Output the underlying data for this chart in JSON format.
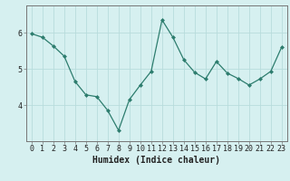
{
  "x": [
    0,
    1,
    2,
    3,
    4,
    5,
    6,
    7,
    8,
    9,
    10,
    11,
    12,
    13,
    14,
    15,
    16,
    17,
    18,
    19,
    20,
    21,
    22,
    23
  ],
  "y": [
    5.97,
    5.87,
    5.63,
    5.35,
    4.65,
    4.28,
    4.23,
    3.85,
    3.3,
    4.15,
    4.55,
    4.93,
    6.35,
    5.87,
    5.25,
    4.9,
    4.72,
    5.2,
    4.88,
    4.73,
    4.55,
    4.72,
    4.93,
    5.6
  ],
  "line_color": "#2d7d6e",
  "marker": "D",
  "marker_size": 2.0,
  "bg_color": "#d6f0f0",
  "grid_color": "#b8dcdc",
  "xlabel": "Humidex (Indice chaleur)",
  "yticks": [
    4,
    5,
    6
  ],
  "ylim": [
    3.0,
    6.75
  ],
  "xlim": [
    -0.5,
    23.5
  ],
  "xlabel_fontsize": 7,
  "tick_fontsize": 6
}
